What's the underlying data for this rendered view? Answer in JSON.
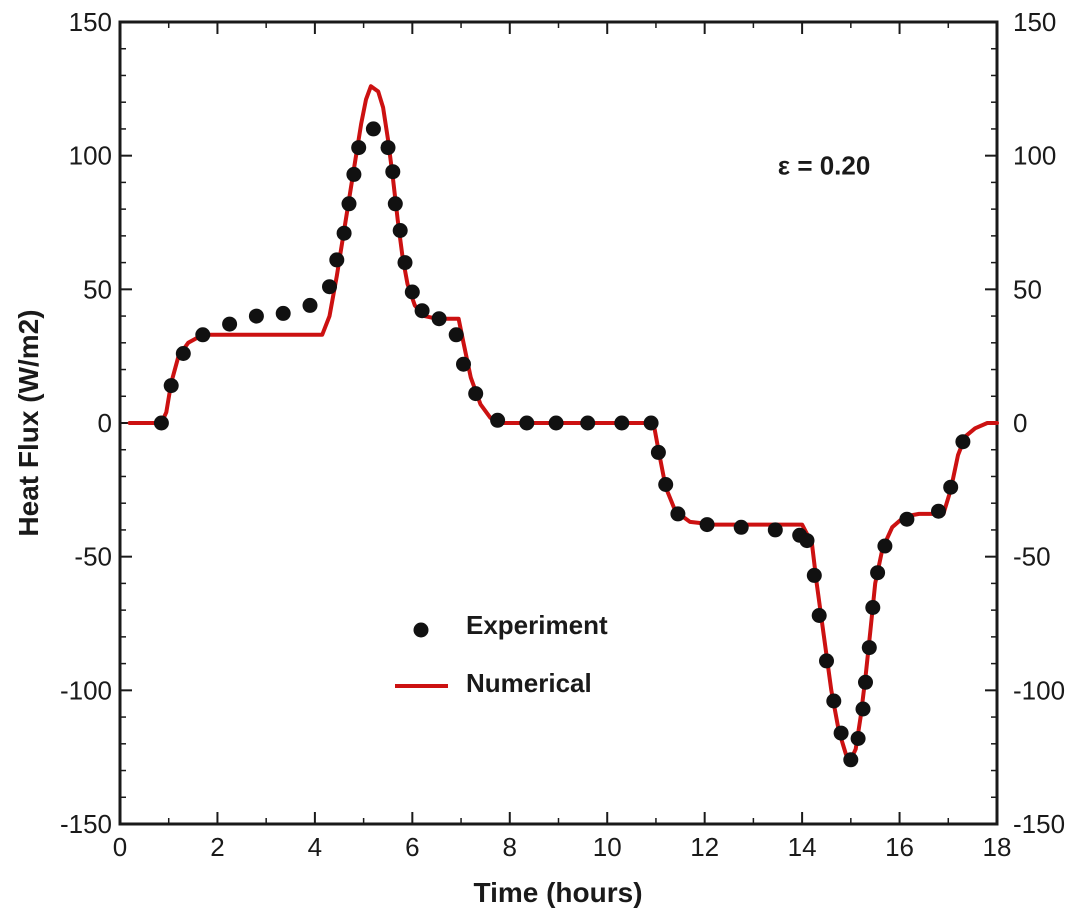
{
  "chart_data": {
    "type": "line",
    "xlabel": "Time (hours)",
    "ylabel": "Heat Flux (W/m2)",
    "xlim": [
      0,
      18
    ],
    "ylim": [
      -150,
      150
    ],
    "x_ticks": [
      0,
      2,
      4,
      6,
      8,
      10,
      12,
      14,
      16,
      18
    ],
    "x_tick_labels": [
      "0",
      "2",
      "4",
      "6",
      "8",
      "10",
      "12",
      "14",
      "16",
      "18"
    ],
    "y_ticks": [
      -150,
      -100,
      -50,
      0,
      50,
      100,
      150
    ],
    "y_tick_labels": [
      "-150",
      "-100",
      "-50",
      "0",
      "50",
      "100",
      "150"
    ],
    "right_axis_labels": true,
    "grid": false,
    "annotation": {
      "text": "ε = 0.20",
      "x": 13.5,
      "y": 93
    },
    "legend": {
      "placement": "lower-center",
      "entries": [
        {
          "label": "Experiment",
          "marker": "dot",
          "color": "#111111"
        },
        {
          "label": "Numerical",
          "marker": "line",
          "color": "#cc1111"
        }
      ]
    },
    "series": [
      {
        "name": "Experiment",
        "style": "scatter",
        "color": "#111111",
        "points": [
          [
            0.85,
            0
          ],
          [
            1.05,
            14
          ],
          [
            1.3,
            26
          ],
          [
            1.7,
            33
          ],
          [
            2.25,
            37
          ],
          [
            2.8,
            40
          ],
          [
            3.35,
            41
          ],
          [
            3.9,
            44
          ],
          [
            4.3,
            51
          ],
          [
            4.45,
            61
          ],
          [
            4.6,
            71
          ],
          [
            4.7,
            82
          ],
          [
            4.8,
            93
          ],
          [
            4.9,
            103
          ],
          [
            5.2,
            110
          ],
          [
            5.5,
            103
          ],
          [
            5.6,
            94
          ],
          [
            5.65,
            82
          ],
          [
            5.75,
            72
          ],
          [
            5.85,
            60
          ],
          [
            6.0,
            49
          ],
          [
            6.2,
            42
          ],
          [
            6.55,
            39
          ],
          [
            6.9,
            33
          ],
          [
            7.05,
            22
          ],
          [
            7.3,
            11
          ],
          [
            7.75,
            1
          ],
          [
            8.35,
            0
          ],
          [
            8.95,
            0
          ],
          [
            9.6,
            0
          ],
          [
            10.3,
            0
          ],
          [
            10.9,
            0
          ],
          [
            11.05,
            -11
          ],
          [
            11.2,
            -23
          ],
          [
            11.45,
            -34
          ],
          [
            12.05,
            -38
          ],
          [
            12.75,
            -39
          ],
          [
            13.45,
            -40
          ],
          [
            13.95,
            -42
          ],
          [
            14.1,
            -44
          ],
          [
            14.25,
            -57
          ],
          [
            14.35,
            -72
          ],
          [
            14.5,
            -89
          ],
          [
            14.65,
            -104
          ],
          [
            14.8,
            -116
          ],
          [
            15.0,
            -126
          ],
          [
            15.15,
            -118
          ],
          [
            15.25,
            -107
          ],
          [
            15.3,
            -97
          ],
          [
            15.38,
            -84
          ],
          [
            15.45,
            -69
          ],
          [
            15.55,
            -56
          ],
          [
            15.7,
            -46
          ],
          [
            16.15,
            -36
          ],
          [
            16.8,
            -33
          ],
          [
            17.05,
            -24
          ],
          [
            17.3,
            -7
          ]
        ]
      },
      {
        "name": "Numerical",
        "style": "line",
        "color": "#cc1111",
        "points": [
          [
            0.2,
            0
          ],
          [
            0.85,
            0
          ],
          [
            0.95,
            4
          ],
          [
            1.05,
            15
          ],
          [
            1.2,
            25
          ],
          [
            1.4,
            30
          ],
          [
            1.7,
            33
          ],
          [
            2.2,
            33
          ],
          [
            3,
            33
          ],
          [
            3.7,
            33
          ],
          [
            4.15,
            33
          ],
          [
            4.3,
            40
          ],
          [
            4.45,
            55
          ],
          [
            4.6,
            72
          ],
          [
            4.8,
            95
          ],
          [
            4.95,
            112
          ],
          [
            5.05,
            121
          ],
          [
            5.15,
            126
          ],
          [
            5.3,
            124
          ],
          [
            5.4,
            118
          ],
          [
            5.5,
            106
          ],
          [
            5.6,
            92
          ],
          [
            5.7,
            76
          ],
          [
            5.8,
            62
          ],
          [
            5.9,
            52
          ],
          [
            6.05,
            44
          ],
          [
            6.25,
            40
          ],
          [
            6.5,
            39
          ],
          [
            6.95,
            39
          ],
          [
            7.05,
            30
          ],
          [
            7.2,
            17
          ],
          [
            7.4,
            7
          ],
          [
            7.6,
            2
          ],
          [
            7.8,
            0
          ],
          [
            8.5,
            0
          ],
          [
            9.5,
            0
          ],
          [
            10.5,
            0
          ],
          [
            10.95,
            0
          ],
          [
            11.05,
            -10
          ],
          [
            11.2,
            -24
          ],
          [
            11.4,
            -33
          ],
          [
            11.7,
            -37
          ],
          [
            12.2,
            -38
          ],
          [
            13,
            -38
          ],
          [
            13.7,
            -38
          ],
          [
            14.0,
            -38
          ],
          [
            14.2,
            -45
          ],
          [
            14.3,
            -60
          ],
          [
            14.45,
            -80
          ],
          [
            14.6,
            -100
          ],
          [
            14.75,
            -115
          ],
          [
            14.9,
            -124
          ],
          [
            15.0,
            -126
          ],
          [
            15.1,
            -122
          ],
          [
            15.2,
            -110
          ],
          [
            15.3,
            -95
          ],
          [
            15.4,
            -78
          ],
          [
            15.5,
            -60
          ],
          [
            15.65,
            -47
          ],
          [
            15.85,
            -39
          ],
          [
            16.1,
            -35
          ],
          [
            16.4,
            -34
          ],
          [
            16.9,
            -34
          ],
          [
            17.05,
            -25
          ],
          [
            17.2,
            -12
          ],
          [
            17.35,
            -5
          ],
          [
            17.55,
            -2
          ],
          [
            17.8,
            0
          ],
          [
            18,
            0
          ]
        ]
      }
    ]
  }
}
